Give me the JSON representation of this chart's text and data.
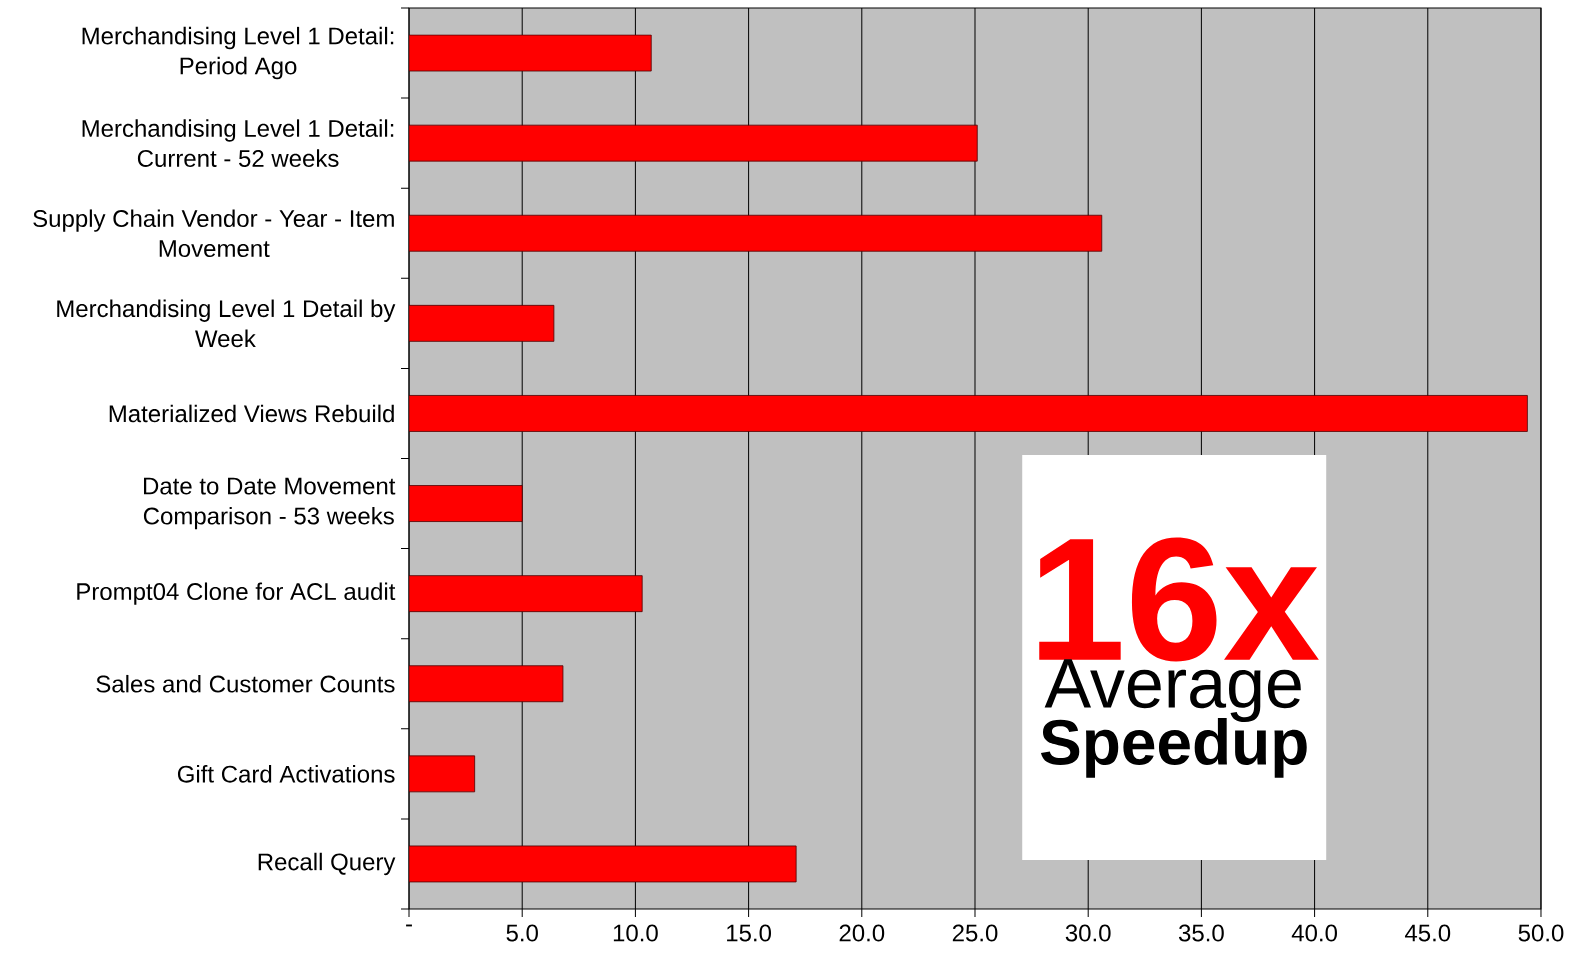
{
  "chart_data": {
    "type": "bar",
    "orientation": "horizontal",
    "categories": [
      "Merchandising Level 1 Detail: Period Ago",
      "Merchandising Level 1 Detail: Current - 52 weeks",
      "Supply Chain Vendor - Year - Item Movement",
      "Merchandising Level 1 Detail by Week",
      "Materialized Views Rebuild",
      "Date to Date Movement Comparison - 53 weeks",
      "Prompt04 Clone for ACL audit",
      "Sales and Customer Counts",
      "Gift Card Activations",
      "Recall Query"
    ],
    "values": [
      10.7,
      25.1,
      30.6,
      6.4,
      49.4,
      5.0,
      10.3,
      6.8,
      2.9,
      17.1
    ],
    "color": "#ff0000",
    "xlim": [
      0,
      50
    ],
    "xticks": [
      {
        "value": 0,
        "label": "-"
      },
      {
        "value": 5,
        "label": "5.0"
      },
      {
        "value": 10,
        "label": "10.0"
      },
      {
        "value": 15,
        "label": "15.0"
      },
      {
        "value": 20,
        "label": "20.0"
      },
      {
        "value": 25,
        "label": "25.0"
      },
      {
        "value": 30,
        "label": "30.0"
      },
      {
        "value": 35,
        "label": "35.0"
      },
      {
        "value": 40,
        "label": "40.0"
      },
      {
        "value": 45,
        "label": "45.0"
      },
      {
        "value": 50,
        "label": "50.0"
      }
    ],
    "grid": "x",
    "annotations": [
      "16x",
      "Average",
      "Speedup"
    ]
  }
}
